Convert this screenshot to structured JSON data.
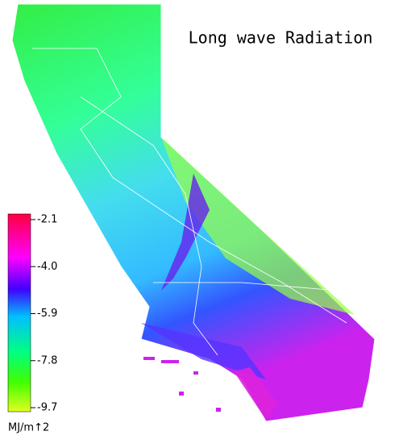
{
  "title": "Long wave Radiation",
  "colorbar": {
    "ticks": [
      -2.1,
      {
        "value": -4,
        "label": "-4.0"
      },
      -5.9,
      -7.8,
      -9.7
    ],
    "unit": "MJ/m↑2"
  }
}
